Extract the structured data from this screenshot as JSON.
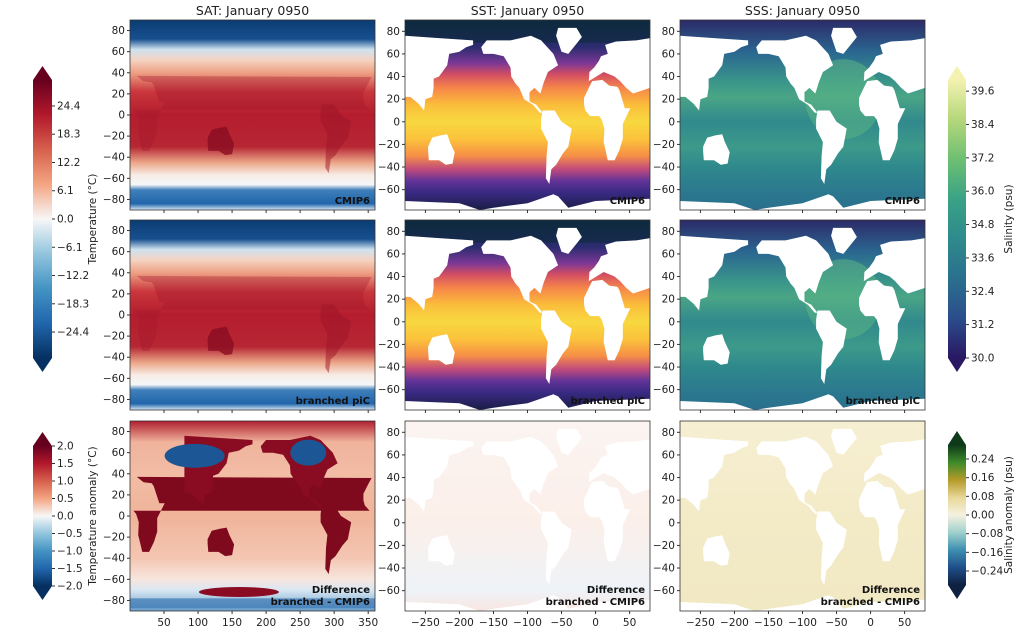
{
  "chart_data": [
    {
      "type": "heatmap",
      "variable": "SAT",
      "title": "SAT: January 0950",
      "label": [
        "CMIP6"
      ],
      "colorbar": "temperature",
      "xlim": [
        0,
        360
      ],
      "ylim": [
        -90,
        90
      ],
      "xticks": [],
      "yticks": [
        "80",
        "60",
        "40",
        "20",
        "0",
        "−20",
        "−40",
        "−60",
        "−80"
      ]
    },
    {
      "type": "heatmap",
      "variable": "SST",
      "title": "SST: January 0950",
      "label": [
        "CMIP6"
      ],
      "colorbar": "temperature",
      "xlim": [
        -280,
        80
      ],
      "ylim": [
        -78,
        90
      ],
      "xticks": [],
      "yticks": [
        "80",
        "60",
        "40",
        "20",
        "0",
        "−20",
        "−40",
        "−60"
      ]
    },
    {
      "type": "heatmap",
      "variable": "SSS",
      "title": "SSS: January 0950",
      "label": [
        "CMIP6"
      ],
      "colorbar": "salinity",
      "xlim": [
        -280,
        80
      ],
      "ylim": [
        -78,
        90
      ],
      "xticks": [],
      "yticks": [
        "80",
        "60",
        "40",
        "20",
        "0",
        "−20",
        "−40",
        "−60"
      ]
    },
    {
      "type": "heatmap",
      "variable": "SAT",
      "title": "",
      "label": [
        "branched piC"
      ],
      "colorbar": "temperature",
      "xlim": [
        0,
        360
      ],
      "ylim": [
        -90,
        90
      ],
      "xticks": [],
      "yticks": [
        "80",
        "60",
        "40",
        "20",
        "0",
        "−20",
        "−40",
        "−60",
        "−80"
      ]
    },
    {
      "type": "heatmap",
      "variable": "SST",
      "title": "",
      "label": [
        "branched piC"
      ],
      "colorbar": "temperature",
      "xlim": [
        -280,
        80
      ],
      "ylim": [
        -78,
        90
      ],
      "xticks": [],
      "yticks": [
        "80",
        "60",
        "40",
        "20",
        "0",
        "−20",
        "−40",
        "−60"
      ]
    },
    {
      "type": "heatmap",
      "variable": "SSS",
      "title": "",
      "label": [
        "branched piC"
      ],
      "colorbar": "salinity",
      "xlim": [
        -280,
        80
      ],
      "ylim": [
        -78,
        90
      ],
      "xticks": [],
      "yticks": [
        "80",
        "60",
        "40",
        "20",
        "0",
        "−20",
        "−40",
        "−60"
      ]
    },
    {
      "type": "heatmap",
      "variable": "SAT difference",
      "title": "",
      "label": [
        "Difference",
        "branched - CMIP6"
      ],
      "colorbar": "temperature_anomaly",
      "xlim": [
        0,
        360
      ],
      "ylim": [
        -90,
        90
      ],
      "xticks": [
        "50",
        "100",
        "150",
        "200",
        "250",
        "300",
        "350"
      ],
      "yticks": [
        "80",
        "60",
        "40",
        "20",
        "0",
        "−20",
        "−40",
        "−60",
        "−80"
      ]
    },
    {
      "type": "heatmap",
      "variable": "SST difference",
      "title": "",
      "label": [
        "Difference",
        "branched - CMIP6"
      ],
      "colorbar": "temperature_anomaly",
      "xlim": [
        -280,
        80
      ],
      "ylim": [
        -78,
        90
      ],
      "xticks": [
        "−250",
        "−200",
        "−150",
        "−100",
        "−50",
        "0",
        "50"
      ],
      "yticks": [
        "80",
        "60",
        "40",
        "20",
        "0",
        "−20",
        "−40",
        "−60"
      ]
    },
    {
      "type": "heatmap",
      "variable": "SSS difference",
      "title": "",
      "label": [
        "Difference",
        "branched - CMIP6"
      ],
      "colorbar": "salinity_anomaly",
      "xlim": [
        -280,
        80
      ],
      "ylim": [
        -78,
        90
      ],
      "xticks": [
        "−250",
        "−200",
        "−150",
        "−100",
        "−50",
        "0",
        "50"
      ],
      "yticks": [
        "80",
        "60",
        "40",
        "20",
        "0",
        "−20",
        "−40",
        "−60"
      ]
    }
  ],
  "colorbars": {
    "temperature": {
      "label": "Temperature (°C)",
      "range": [
        -30,
        30
      ],
      "ticks": [
        "24.4",
        "18.3",
        "12.2",
        "6.1",
        "0.0",
        "−6.1",
        "−12.2",
        "−18.3",
        "−24.4"
      ],
      "tick_values": [
        24.4,
        18.3,
        12.2,
        6.1,
        0,
        -6.1,
        -12.2,
        -18.3,
        -24.4
      ],
      "colors": [
        "#053061",
        "#2166ac",
        "#4393c3",
        "#92c5de",
        "#f7f7f7",
        "#f4a582",
        "#d6604d",
        "#b2182b",
        "#67001f"
      ]
    },
    "salinity": {
      "label": "Salinity (psu)",
      "range": [
        30,
        40
      ],
      "ticks": [
        "39.6",
        "38.4",
        "37.2",
        "36.0",
        "34.8",
        "33.6",
        "32.4",
        "31.2",
        "30.0"
      ],
      "tick_values": [
        39.6,
        38.4,
        37.2,
        36.0,
        34.8,
        33.6,
        32.4,
        31.2,
        30.0
      ],
      "colors": [
        "#2a1863",
        "#2b4d8c",
        "#2a708e",
        "#2e8a8c",
        "#3aa286",
        "#6dbf72",
        "#b5d77a",
        "#f3f2b0"
      ]
    },
    "temperature_anomaly": {
      "label": "Temperature anomaly (°C)",
      "range": [
        -2,
        2
      ],
      "ticks": [
        "2.0",
        "1.5",
        "1.0",
        "0.5",
        "0.0",
        "−0.5",
        "−1.0",
        "−1.5",
        "−2.0"
      ],
      "tick_values": [
        2,
        1.5,
        1,
        0.5,
        0,
        -0.5,
        -1,
        -1.5,
        -2
      ],
      "colors": [
        "#053061",
        "#2166ac",
        "#4393c3",
        "#92c5de",
        "#f7f7f7",
        "#f4a582",
        "#d6604d",
        "#b2182b",
        "#67001f"
      ]
    },
    "salinity_anomaly": {
      "label": "Salinity anomaly (psu)",
      "range": [
        -0.3,
        0.3
      ],
      "ticks": [
        "0.24",
        "0.16",
        "0.08",
        "0.00",
        "−0.08",
        "−0.16",
        "−0.24"
      ],
      "tick_values": [
        0.24,
        0.16,
        0.08,
        0,
        -0.08,
        -0.16,
        -0.24
      ],
      "colors": [
        "#102040",
        "#1f4f8a",
        "#3d8fb0",
        "#9fd0cc",
        "#f5f1e0",
        "#e8d898",
        "#b59a2a",
        "#3f8a2a",
        "#0e3a1a"
      ]
    }
  }
}
